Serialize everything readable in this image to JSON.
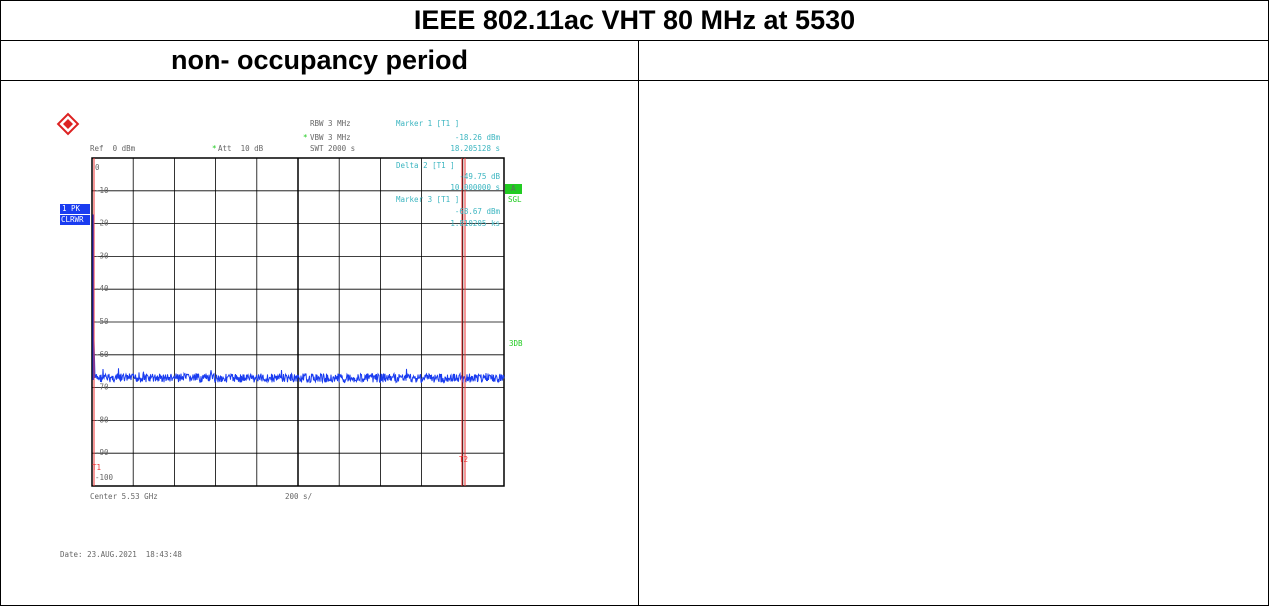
{
  "header": {
    "title": "IEEE 802.11ac VHT 80 MHz at 5530"
  },
  "left_header": "non- occupancy period",
  "screenshot": {
    "settings": {
      "rbw": "RBW 3 MHz",
      "vbw": "VBW 3 MHz",
      "swt": "SWT 2000 s",
      "ref": "Ref  0 dBm",
      "att": "Att  10 dB"
    },
    "markers": [
      {
        "label": "Marker 1 [T1 ]",
        "level": "-18.26 dBm",
        "time": "18.205128 s"
      },
      {
        "label": "Delta 2 [T1 ]",
        "level": "-49.75 dB",
        "time": "10.000000 s"
      },
      {
        "label": "Marker 3 [T1 ]",
        "level": "-68.67 dBm",
        "time": "1.810205 ks"
      }
    ],
    "trace_mode": [
      "1 PK",
      "CLRWR"
    ],
    "status": [
      "A",
      "SGL",
      "3DB"
    ],
    "y_labels": [
      "0",
      "-10",
      "-20",
      "-30",
      "-40",
      "-50",
      "-60",
      "-70",
      "-80",
      "-90",
      "-100"
    ],
    "marker_tags": [
      "T1",
      "T2"
    ],
    "center": "Center 5.53 GHz",
    "span": "200 s/",
    "date": "Date: 23.AUG.2021  18:43:48"
  }
}
